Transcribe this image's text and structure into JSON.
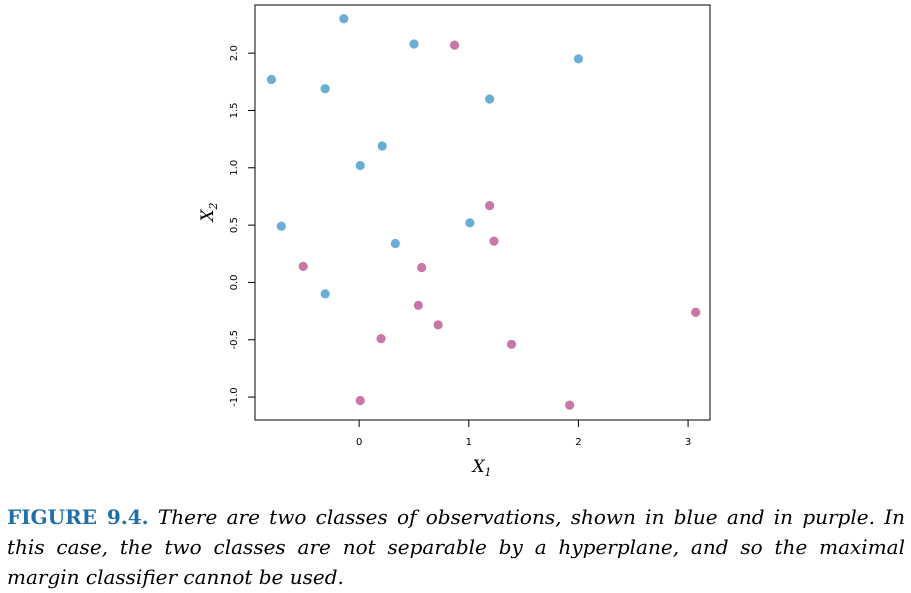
{
  "chart_data": {
    "type": "scatter",
    "title": "",
    "xlabel": "X",
    "xlabel_sub": "1",
    "ylabel": "X",
    "ylabel_sub": "2",
    "xlim": [
      -0.95,
      3.2
    ],
    "ylim": [
      -1.2,
      2.42
    ],
    "xticks": [
      0,
      1,
      2,
      3
    ],
    "xtick_labels": [
      "0",
      "1",
      "2",
      "3"
    ],
    "yticks": [
      -1.0,
      -0.5,
      0.0,
      0.5,
      1.0,
      1.5,
      2.0
    ],
    "ytick_labels": [
      "-1.0",
      "-0.5",
      "0.0",
      "0.5",
      "1.0",
      "1.5",
      "2.0"
    ],
    "grid": false,
    "series": [
      {
        "color": "#6aaed6",
        "points": [
          [
            -0.14,
            2.3
          ],
          [
            0.5,
            2.08
          ],
          [
            2.0,
            1.95
          ],
          [
            -0.8,
            1.77
          ],
          [
            -0.31,
            1.69
          ],
          [
            1.19,
            1.6
          ],
          [
            0.21,
            1.19
          ],
          [
            0.01,
            1.02
          ],
          [
            -0.71,
            0.49
          ],
          [
            1.01,
            0.52
          ],
          [
            0.33,
            0.34
          ],
          [
            -0.31,
            -0.1
          ]
        ]
      },
      {
        "color": "#c976a8",
        "points": [
          [
            0.87,
            2.07
          ],
          [
            1.19,
            0.67
          ],
          [
            1.23,
            0.36
          ],
          [
            -0.51,
            0.14
          ],
          [
            0.57,
            0.13
          ],
          [
            0.54,
            -0.2
          ],
          [
            0.72,
            -0.37
          ],
          [
            0.2,
            -0.49
          ],
          [
            1.39,
            -0.54
          ],
          [
            3.07,
            -0.26
          ],
          [
            0.01,
            -1.03
          ],
          [
            1.92,
            -1.07
          ]
        ]
      }
    ]
  },
  "caption": {
    "label": "FIGURE 9.4.",
    "text": "There are two classes of observations, shown in blue and in purple. In this case, the two classes are not separable by a hyperplane, and so the maximal margin classifier cannot be used."
  }
}
